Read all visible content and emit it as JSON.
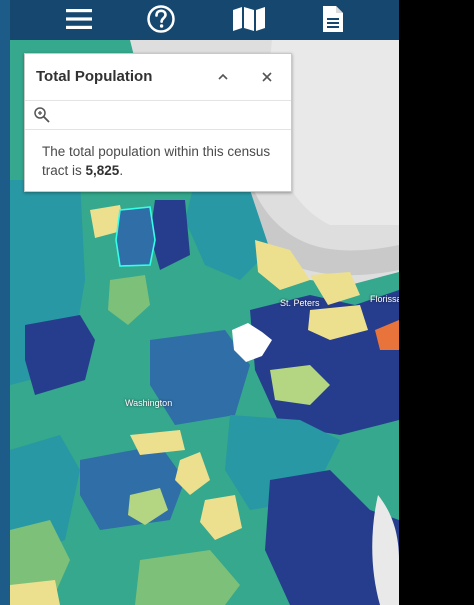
{
  "toolbar": {
    "buttons": [
      {
        "icon": "menu-icon"
      },
      {
        "icon": "help-icon"
      },
      {
        "icon": "map-icon"
      },
      {
        "icon": "document-icon"
      }
    ]
  },
  "panel": {
    "title": "Total Population",
    "text_prefix": "The total population within this census tract is ",
    "value": "5,825",
    "text_suffix": ".",
    "icons": {
      "collapse": "chevron-up-icon",
      "close": "close-icon",
      "zoom": "zoom-to-icon"
    }
  },
  "map": {
    "labels": {
      "st_peters": "St. Peters",
      "florissant": "Florissa",
      "washington": "Washington"
    },
    "colors": {
      "dark_blue": "#253d8c",
      "blue": "#2f6ea6",
      "teal": "#2898a4",
      "green_teal": "#35a88d",
      "green": "#7cc07a",
      "light_green": "#b4d581",
      "yellow": "#ece08f",
      "orange": "#e8743b",
      "selected_outline": "#34ffe8",
      "toolbar": "#16476f"
    }
  }
}
